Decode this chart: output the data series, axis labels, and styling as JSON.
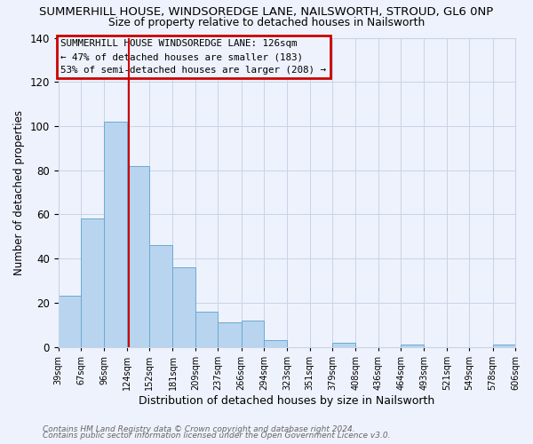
{
  "title": "SUMMERHILL HOUSE, WINDSOREDGE LANE, NAILSWORTH, STROUD, GL6 0NP",
  "subtitle": "Size of property relative to detached houses in Nailsworth",
  "xlabel": "Distribution of detached houses by size in Nailsworth",
  "ylabel": "Number of detached properties",
  "bin_edges": [
    39,
    67,
    96,
    124,
    152,
    181,
    209,
    237,
    266,
    294,
    323,
    351,
    379,
    408,
    436,
    464,
    493,
    521,
    549,
    578,
    606
  ],
  "bar_heights": [
    23,
    58,
    102,
    82,
    46,
    36,
    16,
    11,
    12,
    3,
    0,
    0,
    2,
    0,
    0,
    1,
    0,
    0,
    0,
    1
  ],
  "bar_color": "#b8d4ee",
  "bar_edge_color": "#6aaad4",
  "bg_color": "#eef2fc",
  "grid_color": "#c8d4e8",
  "vline_x": 126,
  "vline_color": "#cc0000",
  "ylim": [
    0,
    140
  ],
  "annotation_line1": "SUMMERHILL HOUSE WINDSOREDGE LANE: 126sqm",
  "annotation_line2": "← 47% of detached houses are smaller (183)",
  "annotation_line3": "53% of semi-detached houses are larger (208) →",
  "annotation_box_color": "#cc0000",
  "footer1": "Contains HM Land Registry data © Crown copyright and database right 2024.",
  "footer2": "Contains public sector information licensed under the Open Government Licence v3.0."
}
